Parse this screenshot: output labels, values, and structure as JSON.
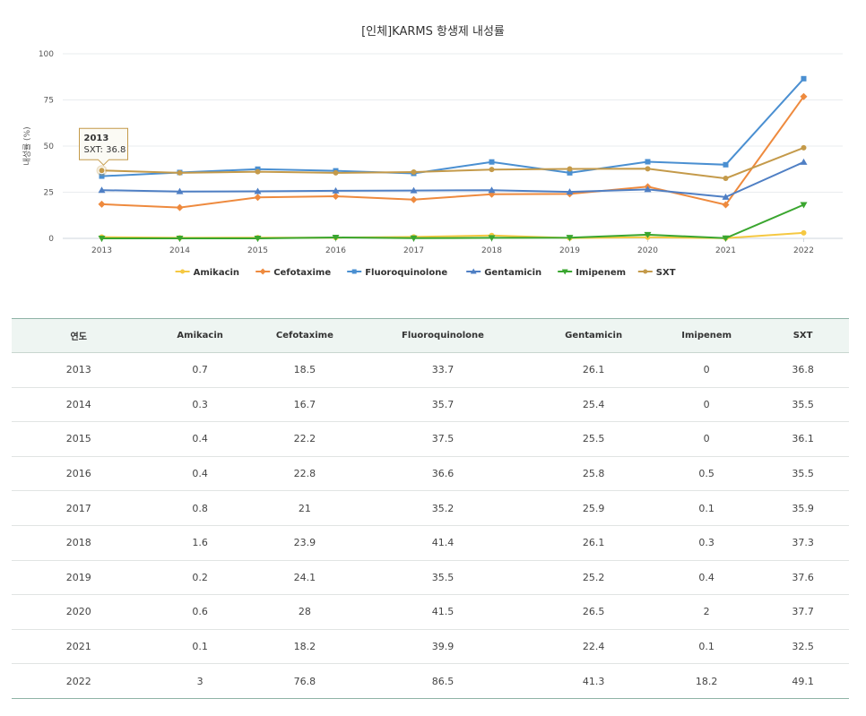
{
  "chart_data": {
    "type": "line",
    "title": "[인체]KARMS 항생제 내성률",
    "ylabel": "내성률 (%)",
    "xlabel": "",
    "ylim": [
      0,
      100
    ],
    "yticks": [
      0,
      25,
      50,
      75,
      100
    ],
    "categories": [
      "2013",
      "2014",
      "2015",
      "2016",
      "2017",
      "2018",
      "2019",
      "2020",
      "2021",
      "2022"
    ],
    "legend_position": "bottom",
    "series": [
      {
        "name": "Amikacin",
        "color": "#f5c842",
        "marker": "circle",
        "values": [
          0.7,
          0.3,
          0.4,
          0.4,
          0.8,
          1.6,
          0.2,
          0.6,
          0.1,
          3
        ]
      },
      {
        "name": "Cefotaxime",
        "color": "#ee8a3e",
        "marker": "diamond",
        "values": [
          18.5,
          16.7,
          22.2,
          22.8,
          21,
          23.9,
          24.1,
          28,
          18.2,
          76.8
        ]
      },
      {
        "name": "Fluoroquinolone",
        "color": "#4a8fd1",
        "marker": "square",
        "values": [
          33.7,
          35.7,
          37.5,
          36.6,
          35.2,
          41.4,
          35.5,
          41.5,
          39.9,
          86.5
        ]
      },
      {
        "name": "Gentamicin",
        "color": "#4f7fc4",
        "marker": "triangle",
        "values": [
          26.1,
          25.4,
          25.5,
          25.8,
          25.9,
          26.1,
          25.2,
          26.5,
          22.4,
          41.3
        ]
      },
      {
        "name": "Imipenem",
        "color": "#3aa62f",
        "marker": "triangle-down",
        "values": [
          0,
          0,
          0,
          0.5,
          0.1,
          0.3,
          0.4,
          2,
          0.1,
          18.2
        ]
      },
      {
        "name": "SXT",
        "color": "#c49a4a",
        "marker": "circle",
        "values": [
          36.8,
          35.5,
          36.1,
          35.5,
          35.9,
          37.3,
          37.6,
          37.7,
          32.5,
          49.1
        ]
      }
    ],
    "tooltip": {
      "category": "2013",
      "series": "SXT",
      "year_text": "2013",
      "value_text": "SXT: 36.8"
    }
  },
  "table": {
    "headers": [
      "연도",
      "Amikacin",
      "Cefotaxime",
      "Fluoroquinolone",
      "Gentamicin",
      "Imipenem",
      "SXT"
    ],
    "rows": [
      [
        "2013",
        "0.7",
        "18.5",
        "33.7",
        "26.1",
        "0",
        "36.8"
      ],
      [
        "2014",
        "0.3",
        "16.7",
        "35.7",
        "25.4",
        "0",
        "35.5"
      ],
      [
        "2015",
        "0.4",
        "22.2",
        "37.5",
        "25.5",
        "0",
        "36.1"
      ],
      [
        "2016",
        "0.4",
        "22.8",
        "36.6",
        "25.8",
        "0.5",
        "35.5"
      ],
      [
        "2017",
        "0.8",
        "21",
        "35.2",
        "25.9",
        "0.1",
        "35.9"
      ],
      [
        "2018",
        "1.6",
        "23.9",
        "41.4",
        "26.1",
        "0.3",
        "37.3"
      ],
      [
        "2019",
        "0.2",
        "24.1",
        "35.5",
        "25.2",
        "0.4",
        "37.6"
      ],
      [
        "2020",
        "0.6",
        "28",
        "41.5",
        "26.5",
        "2",
        "37.7"
      ],
      [
        "2021",
        "0.1",
        "18.2",
        "39.9",
        "22.4",
        "0.1",
        "32.5"
      ],
      [
        "2022",
        "3",
        "76.8",
        "86.5",
        "41.3",
        "18.2",
        "49.1"
      ]
    ]
  }
}
